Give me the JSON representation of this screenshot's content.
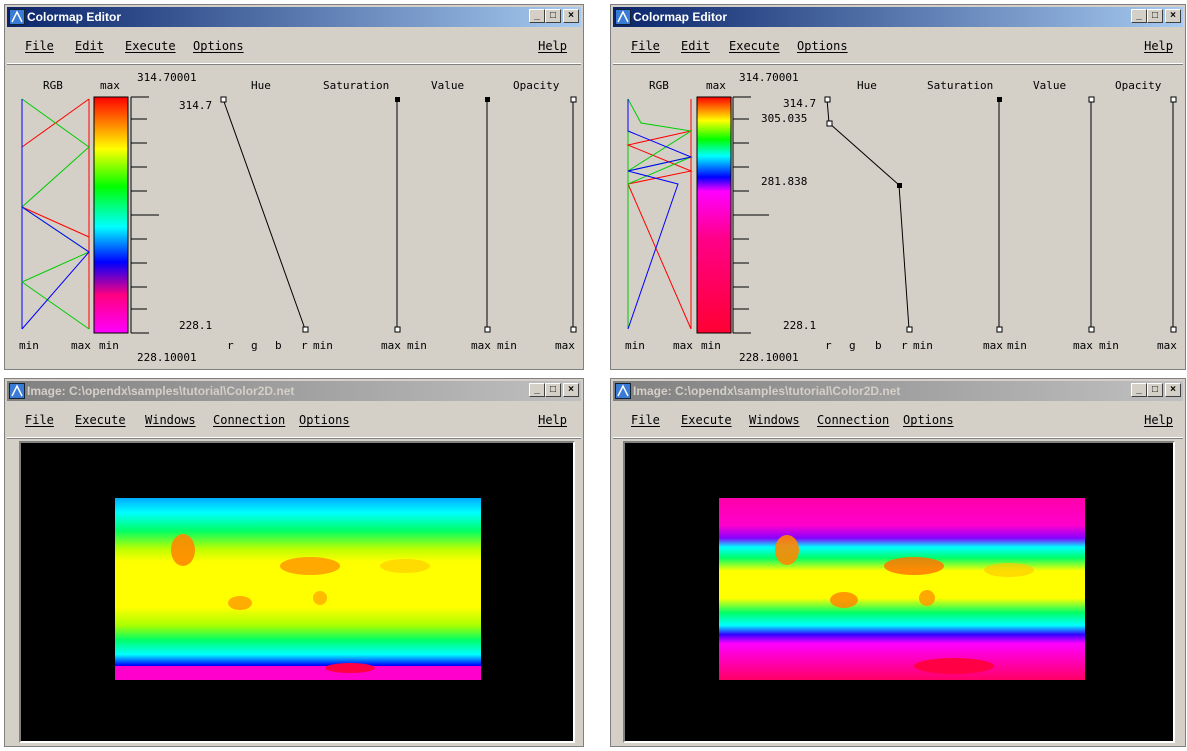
{
  "colors": {
    "title_active": "#0a246a",
    "title_inactive": "#808080",
    "window_bg": "#d4d0c8",
    "canvas_bg": "#000000",
    "red": "#ff0000",
    "green": "#00cc00",
    "blue": "#0000ff"
  },
  "icons": {
    "app": "opendx-icon",
    "minimize": "minimize-icon",
    "maximize": "maximize-icon",
    "close": "close-icon"
  },
  "window_buttons": {
    "minimize": "_",
    "maximize": "□",
    "close": "×"
  },
  "left": {
    "colormap": {
      "title": "Colormap Editor",
      "menu": {
        "file": "File",
        "edit": "Edit",
        "execute": "Execute",
        "options": "Options",
        "help": "Help"
      },
      "headers": {
        "rgb": "RGB",
        "max_top": "max",
        "max_value": "314.70001",
        "hue": "Hue",
        "saturation": "Saturation",
        "value": "Value",
        "opacity": "Opacity"
      },
      "hue_points": [
        {
          "label": "314.7",
          "value": 314.7
        },
        {
          "label": "228.1",
          "value": 228.1
        }
      ],
      "bottom": {
        "min1": "min",
        "max1": "max",
        "min2": "min",
        "r": "r",
        "g": "g",
        "b": "b",
        "r2": "r",
        "min3": "min",
        "max2": "max",
        "min4": "min",
        "max3": "max",
        "min5": "min",
        "max4": "max",
        "min_value": "228.10001"
      }
    },
    "image": {
      "title": "Image: C:\\opendx\\samples\\tutorial\\Color2D.net",
      "menu": {
        "file": "File",
        "execute": "Execute",
        "windows": "Windows",
        "connection": "Connection",
        "options": "Options",
        "help": "Help"
      }
    }
  },
  "right": {
    "colormap": {
      "title": "Colormap Editor",
      "menu": {
        "file": "File",
        "edit": "Edit",
        "execute": "Execute",
        "options": "Options",
        "help": "Help"
      },
      "headers": {
        "rgb": "RGB",
        "max_top": "max",
        "max_value": "314.70001",
        "hue": "Hue",
        "saturation": "Saturation",
        "value": "Value",
        "opacity": "Opacity"
      },
      "hue_points": [
        {
          "label": "314.7",
          "value": 314.7
        },
        {
          "label": "305.035",
          "value": 305.035
        },
        {
          "label": "281.838",
          "value": 281.838
        },
        {
          "label": "228.1",
          "value": 228.1
        }
      ],
      "bottom": {
        "min1": "min",
        "max1": "max",
        "min2": "min",
        "r": "r",
        "g": "g",
        "b": "b",
        "r2": "r",
        "min3": "min",
        "max2": "max",
        "min4": "min",
        "max3": "max",
        "min5": "min",
        "max4": "max",
        "min_value": "228.10001"
      }
    },
    "image": {
      "title": "Image: C:\\opendx\\samples\\tutorial\\Color2D.net",
      "menu": {
        "file": "File",
        "execute": "Execute",
        "windows": "Windows",
        "connection": "Connection",
        "options": "Options",
        "help": "Help"
      }
    }
  }
}
